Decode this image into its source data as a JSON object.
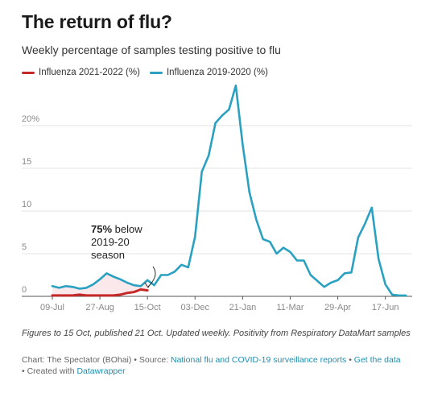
{
  "header": {
    "title": "The return of flu?",
    "subtitle": "Weekly percentage of samples testing positive to flu"
  },
  "chart_data": {
    "type": "line",
    "title": "The return of flu?",
    "subtitle": "Weekly percentage of samples testing positive to flu",
    "ylim": [
      0,
      25
    ],
    "y_ticks": [
      0,
      5,
      10,
      15,
      20
    ],
    "y_tick_labels": [
      "0",
      "5",
      "10",
      "15",
      "20%"
    ],
    "x_tick_labels": [
      "09-Jul",
      "27-Aug",
      "15-Oct",
      "03-Dec",
      "21-Jan",
      "11-Mar",
      "29-Apr",
      "17-Jun"
    ],
    "x_tick_weeks": [
      0,
      7,
      14,
      21,
      28,
      35,
      42,
      49
    ],
    "grid": true,
    "legend_position": "top-left",
    "series": [
      {
        "name": "Influenza 2021-2022 (%)",
        "color": "#c62828",
        "week": [
          0,
          1,
          2,
          3,
          4,
          5,
          6,
          7,
          8,
          9,
          10,
          11,
          12,
          13,
          14
        ],
        "values": [
          0.1,
          0.1,
          0.1,
          0.1,
          0.2,
          0.1,
          0.1,
          0.1,
          0.1,
          0.1,
          0.2,
          0.4,
          0.5,
          0.8,
          0.7
        ]
      },
      {
        "name": "Influenza 2019-2020 (%)",
        "color": "#2aa1c0",
        "week": [
          0,
          1,
          2,
          3,
          4,
          5,
          6,
          7,
          8,
          9,
          10,
          11,
          12,
          13,
          14,
          15,
          16,
          17,
          18,
          19,
          20,
          21,
          22,
          23,
          24,
          25,
          26,
          27,
          28,
          29,
          30,
          31,
          32,
          33,
          34,
          35,
          36,
          37,
          38,
          39,
          40,
          41,
          42,
          43,
          44,
          45,
          46,
          47,
          48,
          49,
          50,
          51,
          52
        ],
        "values": [
          1.2,
          1.0,
          1.2,
          1.1,
          0.9,
          1.0,
          1.4,
          2.0,
          2.7,
          2.3,
          2.0,
          1.6,
          1.3,
          1.2,
          1.9,
          1.3,
          2.5,
          2.5,
          2.9,
          3.7,
          3.4,
          7.0,
          14.6,
          16.5,
          20.3,
          21.2,
          21.9,
          24.7,
          17.8,
          12.2,
          9.0,
          6.7,
          6.4,
          5.0,
          5.7,
          5.2,
          4.2,
          4.2,
          2.5,
          1.8,
          1.1,
          1.6,
          1.9,
          2.7,
          2.8,
          6.9,
          8.5,
          10.4,
          4.4,
          1.4,
          0.2,
          0.1,
          0.1
        ]
      }
    ],
    "annotation": {
      "bold": "75%",
      "line1": " below",
      "line2": "2019-20",
      "line3": "season"
    }
  },
  "footer": {
    "note": "Figures to 15 Oct, published 21 Oct. Updated weekly. Positivity from Respiratory DataMart samples",
    "chart_by": "Chart: The Spectator (BOhai)",
    "sep": " • ",
    "source_label": "Source: ",
    "source_link1": "National flu and COVID-19 surveillance reports",
    "get_data": "Get the data",
    "created_with": "Created with ",
    "datawrapper": "Datawrapper"
  }
}
